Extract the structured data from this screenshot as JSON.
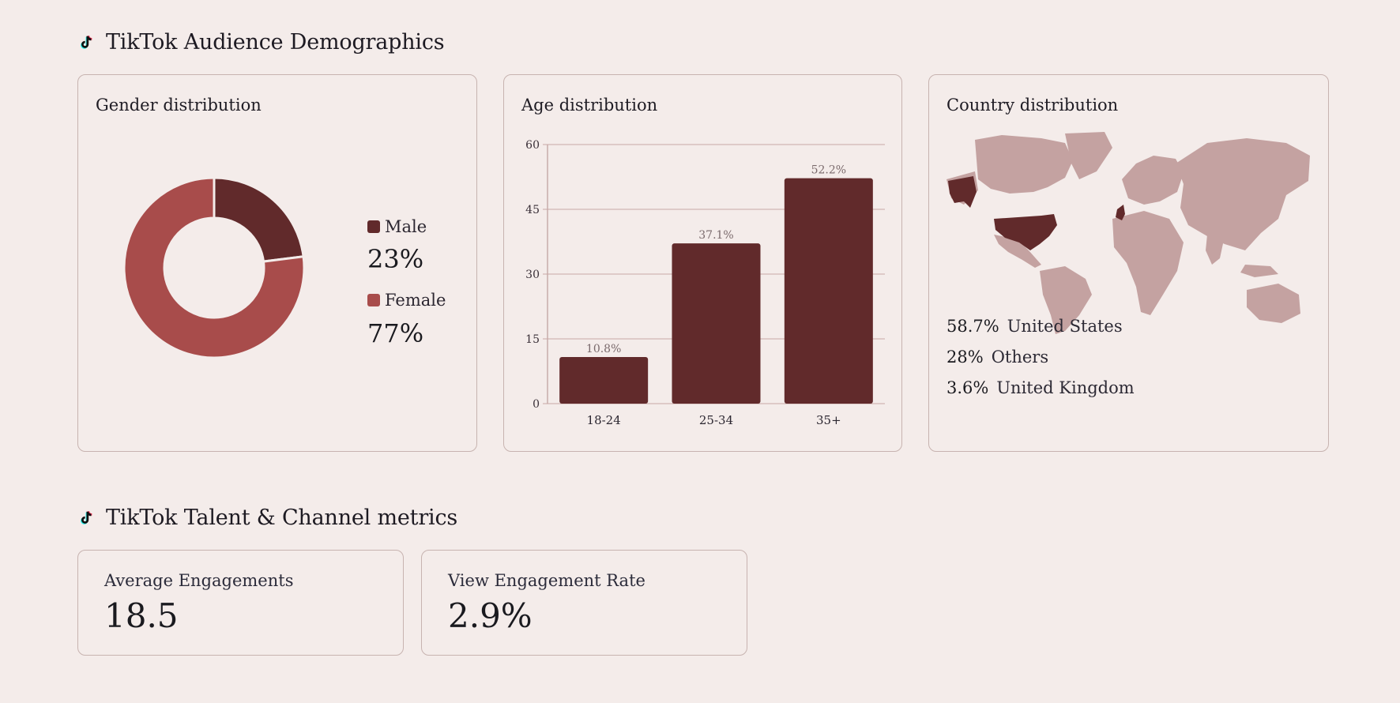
{
  "sections": {
    "demographics_title": "TikTok Audience Demographics",
    "metrics_title": "TikTok Talent & Channel metrics"
  },
  "gender": {
    "title": "Gender distribution",
    "items": [
      {
        "label": "Male",
        "value": "23%",
        "fraction": 0.23,
        "color": "#612a2b"
      },
      {
        "label": "Female",
        "value": "77%",
        "fraction": 0.77,
        "color": "#a84c4b"
      }
    ]
  },
  "age": {
    "title": "Age distribution",
    "chart_data": {
      "type": "bar",
      "categories": [
        "18-24",
        "25-34",
        "35+"
      ],
      "values": [
        10.8,
        37.1,
        52.2
      ],
      "data_labels": [
        "10.8%",
        "37.1%",
        "52.2%"
      ],
      "yticks": [
        "0",
        "15",
        "30",
        "45",
        "60"
      ],
      "ylim": [
        0,
        60
      ],
      "grid": true,
      "bar_color": "#612a2b"
    }
  },
  "country": {
    "title": "Country distribution",
    "items": [
      {
        "pct": "58.7%",
        "name": "United States"
      },
      {
        "pct": "28%",
        "name": "Others"
      },
      {
        "pct": "3.6%",
        "name": "United Kingdom"
      }
    ],
    "highlight_color": "#612a2b",
    "land_color": "#c4a2a1"
  },
  "metrics": [
    {
      "label": "Average Engagements",
      "value": "18.5"
    },
    {
      "label": "View Engagement Rate",
      "value": "2.9%"
    }
  ]
}
